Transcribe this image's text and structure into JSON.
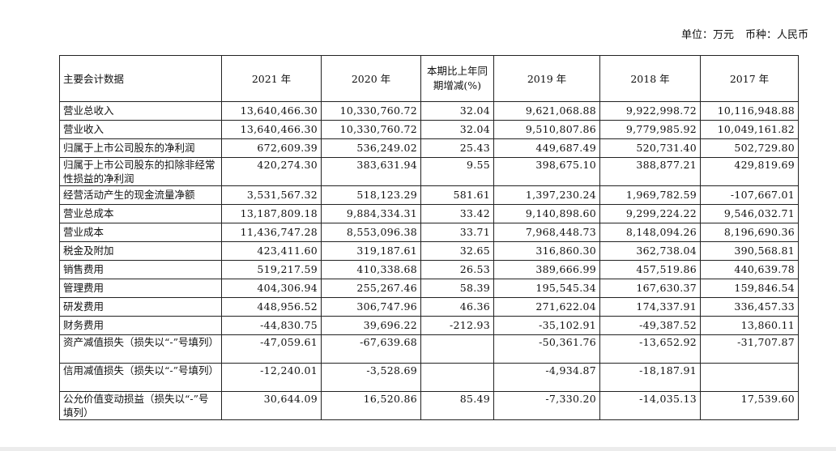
{
  "unit": {
    "unit_label": "单位：万元",
    "currency_label": "币种：人民币"
  },
  "table": {
    "headers": [
      "主要会计数据",
      "2021 年",
      "2020 年",
      "本期比上年同期增减(%)",
      "2019 年",
      "2018 年",
      "2017 年"
    ],
    "rows": [
      {
        "name": "营业总收入",
        "values": [
          "13,640,466.30",
          "10,330,760.72",
          "32.04",
          "9,621,068.88",
          "9,922,998.72",
          "10,116,948.88"
        ]
      },
      {
        "name": "营业收入",
        "values": [
          "13,640,466.30",
          "10,330,760.72",
          "32.04",
          "9,510,807.86",
          "9,779,985.92",
          "10,049,161.82"
        ]
      },
      {
        "name": "归属于上市公司股东的净利润",
        "values": [
          "672,609.39",
          "536,249.02",
          "25.43",
          "449,687.49",
          "520,731.40",
          "502,729.80"
        ]
      },
      {
        "name": "归属于上市公司股东的扣除非经常性损益的净利润",
        "values": [
          "420,274.30",
          "383,631.94",
          "9.55",
          "398,675.10",
          "388,877.21",
          "429,819.69"
        ]
      },
      {
        "name": "经营活动产生的现金流量净额",
        "values": [
          "3,531,567.32",
          "518,123.29",
          "581.61",
          "1,397,230.24",
          "1,969,782.59",
          "-107,667.01"
        ]
      },
      {
        "name": "营业总成本",
        "values": [
          "13,187,809.18",
          "9,884,334.31",
          "33.42",
          "9,140,898.60",
          "9,299,224.22",
          "9,546,032.71"
        ]
      },
      {
        "name": "营业成本",
        "values": [
          "11,436,747.28",
          "8,553,096.38",
          "33.71",
          "7,968,448.73",
          "8,148,094.26",
          "8,196,690.36"
        ]
      },
      {
        "name": "税金及附加",
        "values": [
          "423,411.60",
          "319,187.61",
          "32.65",
          "316,860.30",
          "362,738.04",
          "390,568.81"
        ]
      },
      {
        "name": "销售费用",
        "values": [
          "519,217.59",
          "410,338.68",
          "26.53",
          "389,666.99",
          "457,519.86",
          "440,639.78"
        ]
      },
      {
        "name": "管理费用",
        "values": [
          "404,306.94",
          "255,267.46",
          "58.39",
          "195,545.34",
          "167,630.37",
          "159,846.54"
        ]
      },
      {
        "name": "研发费用",
        "values": [
          "448,956.52",
          "306,747.96",
          "46.36",
          "271,622.04",
          "174,337.91",
          "336,457.33"
        ]
      },
      {
        "name": "财务费用",
        "values": [
          "-44,830.75",
          "39,696.22",
          "-212.93",
          "-35,102.91",
          "-49,387.52",
          "13,860.11"
        ]
      },
      {
        "name": "资产减值损失（损失以“-”号填列）",
        "values": [
          "-47,059.61",
          "-67,639.68",
          "",
          "-50,361.76",
          "-13,652.92",
          "-31,707.87"
        ]
      },
      {
        "name": "信用减值损失（损失以“-”号填列）",
        "values": [
          "-12,240.01",
          "-3,528.69",
          "",
          "-4,934.87",
          "-18,187.91",
          ""
        ]
      },
      {
        "name": "公允价值变动损益（损失以“-”号填列）",
        "values": [
          "30,644.09",
          "16,520.86",
          "85.49",
          "-7,330.20",
          "-14,035.13",
          "17,539.60"
        ]
      }
    ]
  }
}
